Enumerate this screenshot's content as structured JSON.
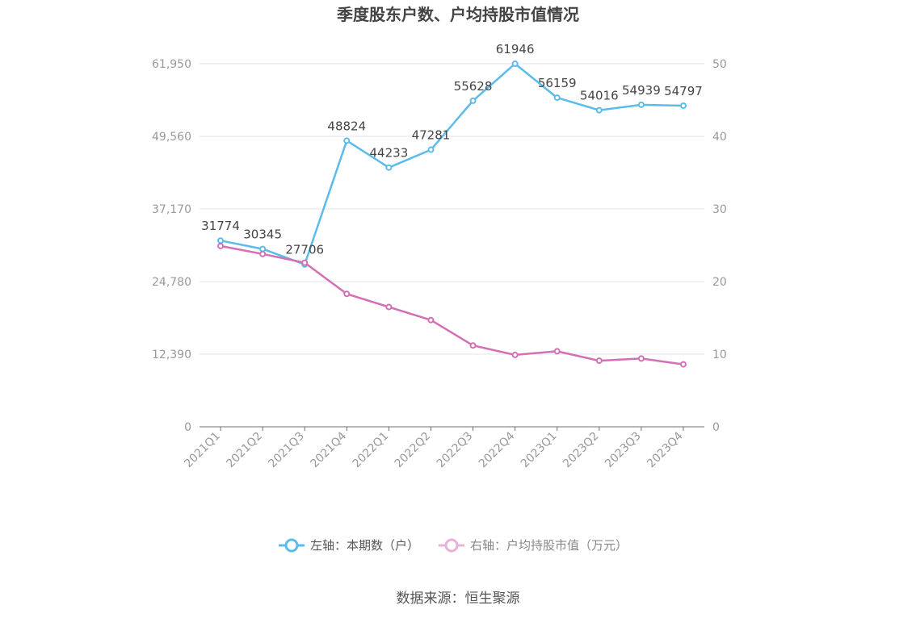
{
  "chart_data": {
    "type": "line",
    "title": "季度股东户数、户均持股市值情况",
    "categories": [
      "2021Q1",
      "2021Q2",
      "2021Q3",
      "2021Q4",
      "2022Q1",
      "2022Q2",
      "2022Q3",
      "2022Q4",
      "2023Q1",
      "2023Q2",
      "2023Q3",
      "2023Q4"
    ],
    "left_axis": {
      "ticks": [
        0,
        12390,
        24780,
        37170,
        49560,
        61950
      ],
      "tick_labels": [
        "0",
        "12,390",
        "24,780",
        "37,170",
        "49,560",
        "61,950"
      ],
      "ylim": [
        0,
        61950
      ]
    },
    "right_axis": {
      "ticks": [
        0,
        10,
        20,
        30,
        40,
        50
      ],
      "tick_labels": [
        "0",
        "10",
        "20",
        "30",
        "40",
        "50"
      ],
      "ylim": [
        0,
        50
      ]
    },
    "series": [
      {
        "name": "左轴：本期数（户）",
        "axis": "left",
        "color": "#5bbcec",
        "values": [
          31774,
          30345,
          27706,
          48824,
          44233,
          47281,
          55628,
          61946,
          56159,
          54016,
          54939,
          54797
        ],
        "labels": [
          "31774",
          "30345",
          "27706",
          "48824",
          "44233",
          "47281",
          "55628",
          "61946",
          "56159",
          "54016",
          "54939",
          "54797"
        ]
      },
      {
        "name": "右轴：户均持股市值（万元）",
        "axis": "right",
        "color": "#d56fb5",
        "values": [
          24.9,
          23.8,
          22.6,
          18.3,
          16.5,
          14.7,
          11.2,
          9.9,
          10.4,
          9.1,
          9.4,
          8.6
        ]
      }
    ],
    "grid": true,
    "legend_position": "bottom"
  },
  "footer": {
    "source": "数据来源：恒生聚源"
  },
  "colors": {
    "grid": "#e3e6f0",
    "axis_text": "#999999",
    "title": "#444444",
    "label": "#444444",
    "legend_text": "#555555"
  }
}
